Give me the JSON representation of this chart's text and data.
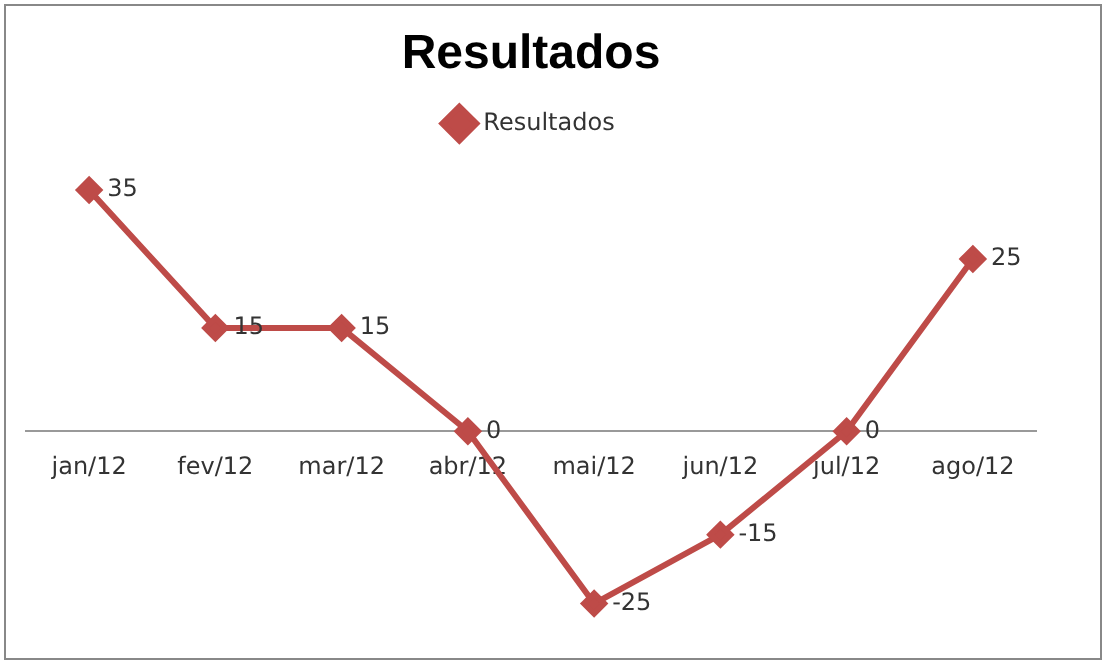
{
  "chart_data": {
    "type": "line",
    "title": "Resultados",
    "categories": [
      "jan/12",
      "fev/12",
      "mar/12",
      "abr/12",
      "mai/12",
      "jun/12",
      "jul/12",
      "ago/12"
    ],
    "series": [
      {
        "name": "Resultados",
        "color": "#be4b48",
        "values": [
          35,
          15,
          15,
          0,
          -25,
          -15,
          0,
          25
        ]
      }
    ],
    "data_labels": true,
    "legend": "top",
    "marker": "diamond",
    "line_style": "solid",
    "grid": false
  }
}
